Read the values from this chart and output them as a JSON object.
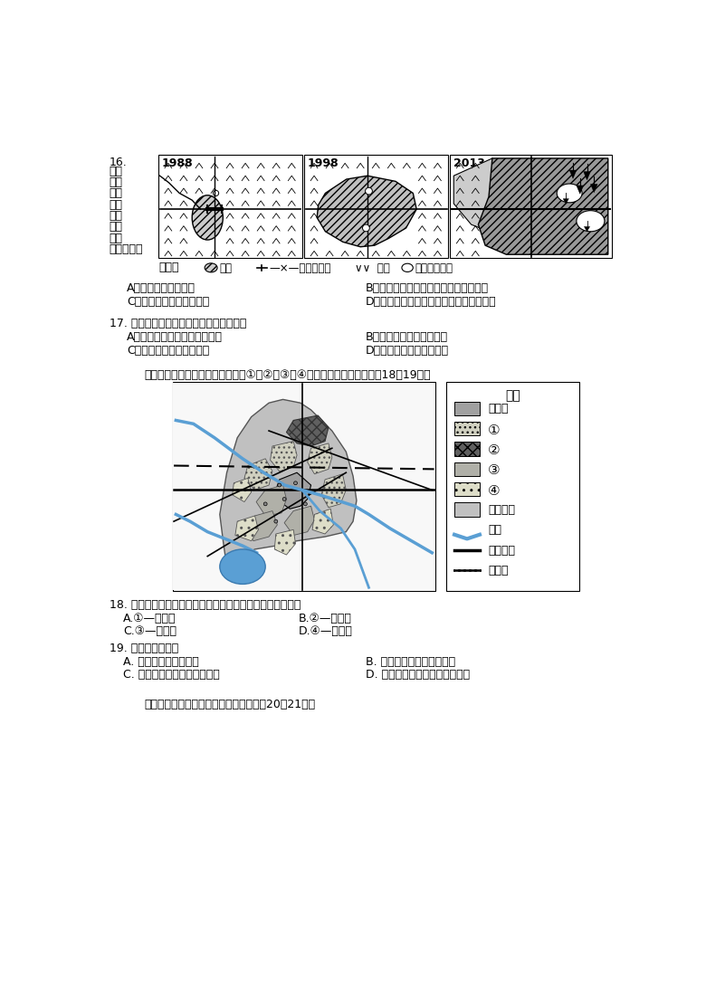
{
  "bg_color": "#ffffff",
  "q16_number": "16.",
  "q16_side_text": [
    "图中",
    "可直",
    "接观",
    "察到",
    "的城",
    "市发",
    "展现",
    "象是（　）"
  ],
  "q16_years": [
    "1988",
    "1998",
    "2013"
  ],
  "legend_line": "图例：      城镇   —×—桥梁、公路  ∨∨  稻田       花卉、蔬菜地",
  "q16_A": "A．城市人口不断增加",
  "q16_B": "B．城市人口在总人口中的比重不断增加",
  "q16_C": "C．城市用地规模不断扩大",
  "q16_D": "D．城市工业生产和商业服务水平不断提高",
  "q17_text": "17. 该地区城市发展带来的影响是（　　）",
  "q17_A": "A．城郊农业生产结构发生变化",
  "q17_B": "B．城市道路建设受到限制",
  "q17_C": "C．城市人口增长速度缓慢",
  "q17_D": "D．地区经济发展趋势变缓",
  "intro18_19": "下图为某城市功能区规划示意图，①、②、③、④代表功能区。读图，回答18～19题。",
  "legend_title": "图例",
  "leg_商业区": "商业区",
  "leg_1": "①",
  "leg_2": "②",
  "leg_3": "③",
  "leg_4": "④",
  "leg_outer": "外围用地",
  "leg_river": "河流",
  "leg_road": "干线公路",
  "leg_rail": "铁路线",
  "q18_text": "18. 若城市功能区规划合理，各功能区判断正确的是（　　）",
  "q18_A": "A.①—工业区",
  "q18_B": "B.②—文教区",
  "q18_C": "C.③—仓储区",
  "q18_D": "D.④—住宅区",
  "q19_text": "19. 该城市（　　）",
  "q19_A": "A. 商业区交通通达度高",
  "q19_B": "B. 空间结构模式为扇形模式",
  "q19_C": "C. 住宅区分化决定于经济因素",
  "q19_D": "D. 增加绿化面积有利于保护农田",
  "intro20_21": "下图为中美两国小麦分布图。读图，回答20～21题。"
}
